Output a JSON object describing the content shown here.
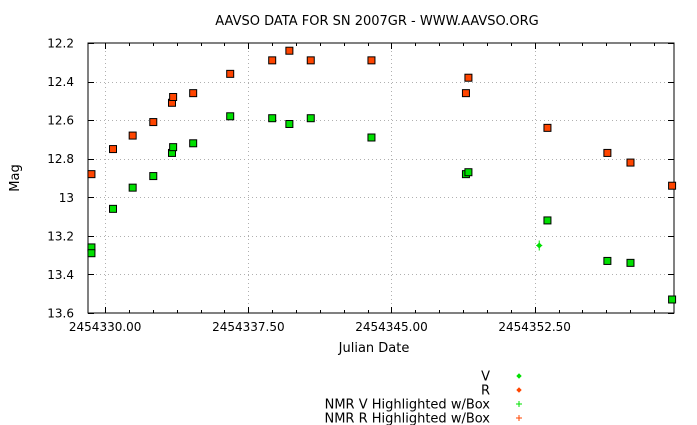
{
  "chart_data": {
    "type": "scatter",
    "title": "AAVSO DATA FOR SN 2007GR - WWW.AAVSO.ORG",
    "xlabel": "Julian Date",
    "ylabel": "Mag",
    "xlim": [
      2454329.1,
      2454359.8
    ],
    "ylim": [
      12.2,
      13.6
    ],
    "y_inverted": true,
    "grid": true,
    "legend_position": "bottom-right",
    "x_ticks": [
      {
        "value": 2454330.0,
        "label": "2454330.00"
      },
      {
        "value": 2454337.5,
        "label": "2454337.50"
      },
      {
        "value": 2454345.0,
        "label": "2454345.00"
      },
      {
        "value": 2454352.5,
        "label": "2454352.50"
      }
    ],
    "x_minor_ticks": [
      2454331.25,
      2454332.5,
      2454333.75,
      2454335.0,
      2454336.25,
      2454338.75,
      2454340.0,
      2454341.25,
      2454342.5,
      2454343.75,
      2454346.25,
      2454347.5,
      2454348.75,
      2454350.0,
      2454351.25,
      2454353.75,
      2454355.0,
      2454356.25,
      2454357.5,
      2454358.75
    ],
    "y_ticks": [
      {
        "value": 12.2,
        "label": "12.2"
      },
      {
        "value": 12.4,
        "label": "12.4"
      },
      {
        "value": 12.6,
        "label": "12.6"
      },
      {
        "value": 12.8,
        "label": "12.8"
      },
      {
        "value": 13.0,
        "label": "13"
      },
      {
        "value": 13.2,
        "label": "13.2"
      },
      {
        "value": 13.4,
        "label": "13.4"
      },
      {
        "value": 13.6,
        "label": "13.6"
      }
    ],
    "series": [
      {
        "name": "V",
        "color": "#00e000",
        "marker": "diamond-in-box",
        "points": [
          {
            "x": 2454329.28,
            "y": 13.26
          },
          {
            "x": 2454329.28,
            "y": 13.29
          },
          {
            "x": 2454330.41,
            "y": 13.06
          },
          {
            "x": 2454331.44,
            "y": 12.95
          },
          {
            "x": 2454332.52,
            "y": 12.89
          },
          {
            "x": 2454333.5,
            "y": 12.77
          },
          {
            "x": 2454333.56,
            "y": 12.74
          },
          {
            "x": 2454334.61,
            "y": 12.72
          },
          {
            "x": 2454336.55,
            "y": 12.58
          },
          {
            "x": 2454338.75,
            "y": 12.59
          },
          {
            "x": 2454339.65,
            "y": 12.62
          },
          {
            "x": 2454340.77,
            "y": 12.59
          },
          {
            "x": 2454343.95,
            "y": 12.69
          },
          {
            "x": 2454348.9,
            "y": 12.88
          },
          {
            "x": 2454349.03,
            "y": 12.87
          },
          {
            "x": 2454353.17,
            "y": 13.12
          },
          {
            "x": 2454356.31,
            "y": 13.33
          },
          {
            "x": 2454357.52,
            "y": 13.34
          },
          {
            "x": 2454359.7,
            "y": 13.53
          }
        ]
      },
      {
        "name": "R",
        "color": "#ff4500",
        "marker": "diamond-in-box",
        "points": [
          {
            "x": 2454329.28,
            "y": 12.88
          },
          {
            "x": 2454330.41,
            "y": 12.75
          },
          {
            "x": 2454331.44,
            "y": 12.68
          },
          {
            "x": 2454332.52,
            "y": 12.61
          },
          {
            "x": 2454333.5,
            "y": 12.51
          },
          {
            "x": 2454333.56,
            "y": 12.48
          },
          {
            "x": 2454334.61,
            "y": 12.46
          },
          {
            "x": 2454336.55,
            "y": 12.36
          },
          {
            "x": 2454338.75,
            "y": 12.29
          },
          {
            "x": 2454339.65,
            "y": 12.24
          },
          {
            "x": 2454340.77,
            "y": 12.29
          },
          {
            "x": 2454343.95,
            "y": 12.29
          },
          {
            "x": 2454348.9,
            "y": 12.46
          },
          {
            "x": 2454349.03,
            "y": 12.38
          },
          {
            "x": 2454353.17,
            "y": 12.64
          },
          {
            "x": 2454356.31,
            "y": 12.77
          },
          {
            "x": 2454357.52,
            "y": 12.82
          },
          {
            "x": 2454359.7,
            "y": 12.94
          }
        ]
      },
      {
        "name": "NMR V Highlighted w/Box",
        "color": "#00e000",
        "marker": "plus",
        "points": [
          {
            "x": 2454352.74,
            "y": 13.25
          }
        ]
      },
      {
        "name": "NMR R Highlighted w/Box",
        "color": "#ff4500",
        "marker": "plus",
        "points": []
      }
    ]
  }
}
